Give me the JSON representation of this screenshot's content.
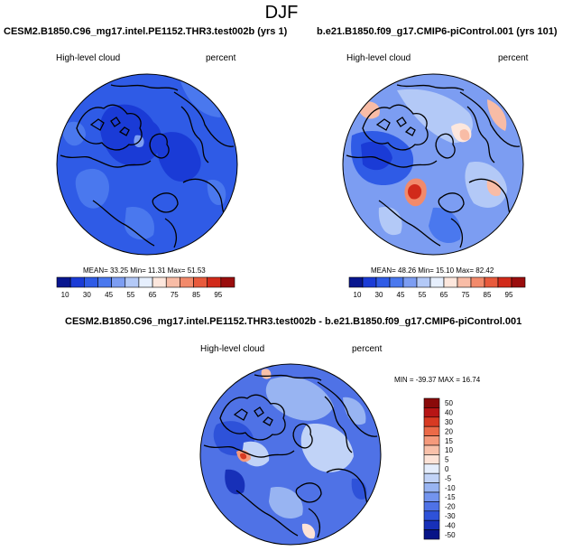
{
  "header": {
    "season": "DJF"
  },
  "panels": {
    "left": {
      "case": "CESM2.B1850.C96_mg17.intel.PE1152.THR3.test002b (yrs 1)",
      "variable": "High-level cloud",
      "units": "percent",
      "stats": "MEAN= 33.25  Min= 11.31  Max= 51.53",
      "colorbar_labels": [
        "10",
        "30",
        "45",
        "55",
        "65",
        "75",
        "85",
        "95"
      ]
    },
    "right": {
      "case": "b.e21.B1850.f09_g17.CMIP6-piControl.001 (yrs 101)",
      "variable": "High-level cloud",
      "units": "percent",
      "stats": "MEAN= 48.26  Min= 15.10  Max= 82.42",
      "colorbar_labels": [
        "10",
        "30",
        "45",
        "55",
        "65",
        "75",
        "85",
        "95"
      ]
    },
    "diff": {
      "case": "CESM2.B1850.C96_mg17.intel.PE1152.THR3.test002b - b.e21.B1850.f09_g17.CMIP6-piControl.001",
      "variable": "High-level cloud",
      "units": "percent",
      "stats": "MIN = -39.37 MAX =  16.74",
      "colorbar_labels": [
        "50",
        "40",
        "30",
        "20",
        "15",
        "10",
        "5",
        "0",
        "-5",
        "-10",
        "-15",
        "-20",
        "-30",
        "-40",
        "-50"
      ]
    }
  },
  "colors": {
    "abs_bar": [
      "#08168f",
      "#1a3bd6",
      "#2f5be6",
      "#4a78ee",
      "#7c9df2",
      "#b3c9f7",
      "#e6effd",
      "#fde7dd",
      "#f8bca6",
      "#f28a6b",
      "#e85a3c",
      "#d12a1a",
      "#9a0d0d"
    ],
    "diff_bar": [
      "#8a0a0a",
      "#b71515",
      "#d83a22",
      "#ec6a48",
      "#f59a7c",
      "#f9c1aa",
      "#fde3d7",
      "#e5eefc",
      "#c1d3f7",
      "#98b4f2",
      "#7394ee",
      "#4f72e6",
      "#2e52d9",
      "#1730b8",
      "#071487"
    ]
  }
}
